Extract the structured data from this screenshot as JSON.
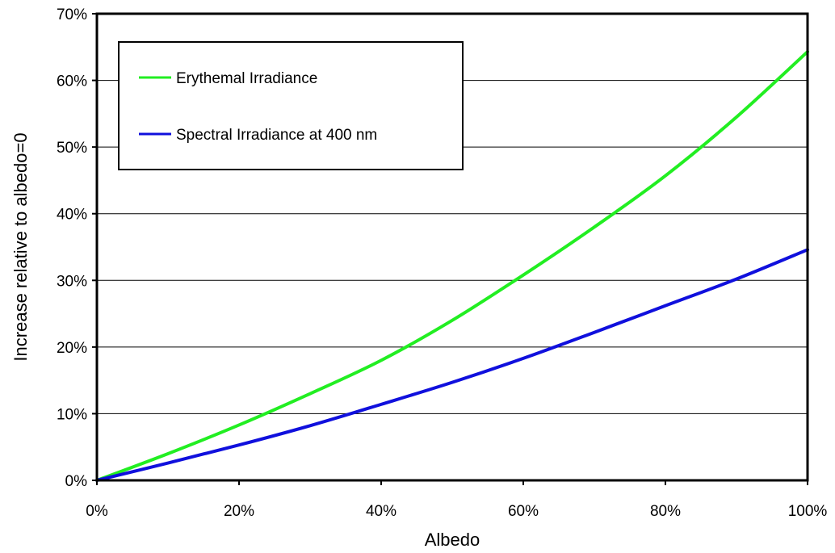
{
  "chart_data": {
    "type": "line",
    "xlabel": "Albedo",
    "ylabel": "Increase relative to albedo=0",
    "xlim": [
      0,
      100
    ],
    "ylim": [
      0,
      70
    ],
    "x_ticks": [
      "0%",
      "20%",
      "40%",
      "60%",
      "80%",
      "100%"
    ],
    "y_ticks": [
      "0%",
      "10%",
      "20%",
      "30%",
      "40%",
      "50%",
      "60%",
      "70%"
    ],
    "x_tick_values": [
      0,
      20,
      40,
      60,
      80,
      100
    ],
    "y_tick_values": [
      0,
      10,
      20,
      30,
      40,
      50,
      60,
      70
    ],
    "grid": "horizontal",
    "legend_position": "top-left",
    "x": [
      0,
      10,
      20,
      30,
      40,
      50,
      60,
      70,
      80,
      90,
      100
    ],
    "series": [
      {
        "name": "Erythemal Irradiance",
        "color": "#22ee22",
        "values": [
          0,
          4.0,
          8.3,
          13.0,
          18.0,
          24.0,
          30.8,
          38.0,
          45.7,
          54.5,
          64.3
        ]
      },
      {
        "name": "Spectral Irradiance at 400 nm",
        "color": "#1010dd",
        "values": [
          0,
          2.6,
          5.3,
          8.2,
          11.4,
          14.7,
          18.3,
          22.2,
          26.2,
          30.2,
          34.6
        ]
      }
    ]
  }
}
